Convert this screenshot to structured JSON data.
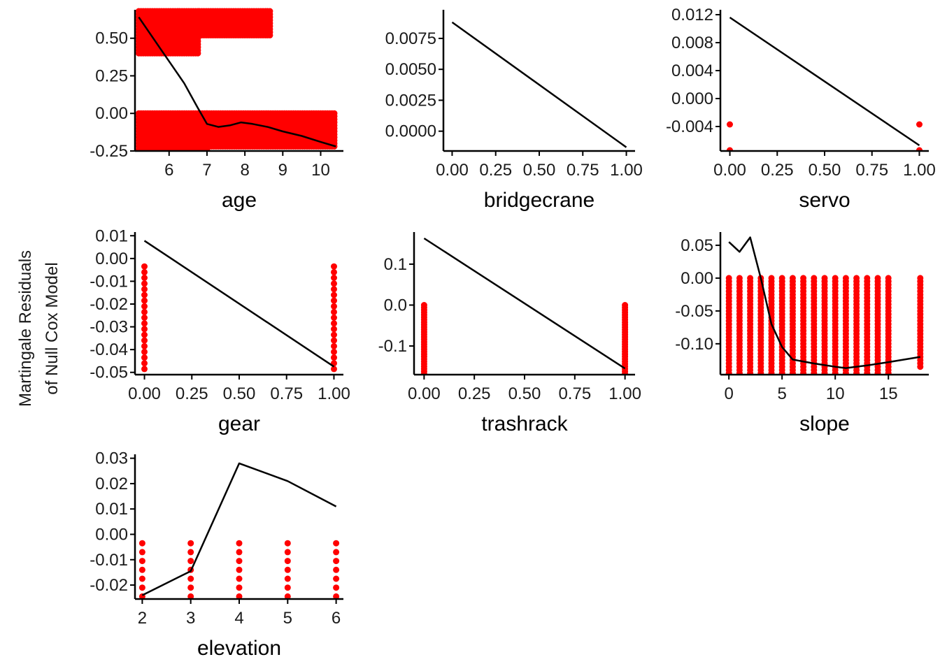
{
  "figure": {
    "ylabel_lines": [
      "Martingale Residuals",
      "of Null Cox Model"
    ]
  },
  "colors": {
    "points": "#ff0000",
    "line": "#000000",
    "axis": "#000000"
  },
  "chart_data": [
    {
      "type": "scatter",
      "xlabel": "age",
      "xlim": [
        5.1,
        10.6
      ],
      "ylim": [
        -0.25,
        0.68
      ],
      "xticks": [
        6,
        7,
        8,
        9,
        10
      ],
      "xtick_labels": [
        "6",
        "7",
        "8",
        "9",
        "10"
      ],
      "yticks": [
        -0.25,
        0.0,
        0.25,
        0.5
      ],
      "ytick_labels": [
        "-0.25",
        "0.00",
        "0.25",
        "0.50"
      ],
      "point_columns": [
        {
          "x_start": 5.2,
          "x_end": 7.0,
          "step": 0.06,
          "y_top": 0.0,
          "y_bottom": -0.25,
          "y_step": 0.02
        },
        {
          "x_start": 7.0,
          "x_end": 10.4,
          "step": 0.06,
          "y_top": 0.0,
          "y_bottom": -0.22,
          "y_step": 0.02
        },
        {
          "x_start": 5.2,
          "x_end": 6.8,
          "step": 0.06,
          "y_top": 0.68,
          "y_bottom": 0.4,
          "y_step": 0.02
        },
        {
          "x_start": 6.8,
          "x_end": 8.7,
          "step": 0.06,
          "y_top": 0.68,
          "y_bottom": 0.52,
          "y_step": 0.02
        }
      ],
      "line": {
        "x": [
          5.2,
          5.8,
          6.4,
          6.75,
          7.0,
          7.3,
          7.6,
          7.9,
          8.2,
          8.6,
          9.0,
          9.5,
          10.0,
          10.4
        ],
        "y": [
          0.64,
          0.42,
          0.2,
          0.04,
          -0.07,
          -0.09,
          -0.08,
          -0.06,
          -0.07,
          -0.09,
          -0.12,
          -0.15,
          -0.19,
          -0.22
        ]
      }
    },
    {
      "type": "scatter",
      "xlabel": "bridgecrane",
      "xlim": [
        -0.05,
        1.05
      ],
      "ylim": [
        -0.0016,
        0.0097
      ],
      "xticks": [
        0.0,
        0.25,
        0.5,
        0.75,
        1.0
      ],
      "xtick_labels": [
        "0.00",
        "0.25",
        "0.50",
        "0.75",
        "1.00"
      ],
      "yticks": [
        0.0,
        0.0025,
        0.005,
        0.0075
      ],
      "ytick_labels": [
        "0.0000",
        "0.0025",
        "0.0050",
        "0.0075"
      ],
      "point_columns": [],
      "line": {
        "x": [
          0,
          1
        ],
        "y": [
          0.0088,
          -0.0013
        ]
      }
    },
    {
      "type": "scatter",
      "xlabel": "servo",
      "xlim": [
        -0.05,
        1.05
      ],
      "ylim": [
        -0.0075,
        0.0125
      ],
      "xticks": [
        0.0,
        0.25,
        0.5,
        0.75,
        1.0
      ],
      "xtick_labels": [
        "0.00",
        "0.25",
        "0.50",
        "0.75",
        "1.00"
      ],
      "yticks": [
        -0.004,
        0.0,
        0.004,
        0.008,
        0.012
      ],
      "ytick_labels": [
        "-0.004",
        "0.000",
        "0.004",
        "0.008",
        "0.012"
      ],
      "points": {
        "x": [
          0,
          0,
          1,
          1
        ],
        "y": [
          -0.0037,
          -0.0074,
          -0.0037,
          -0.0074
        ]
      },
      "line": {
        "x": [
          0,
          1
        ],
        "y": [
          0.0116,
          -0.0067
        ]
      }
    },
    {
      "type": "scatter",
      "xlabel": "gear",
      "xlim": [
        -0.05,
        1.05
      ],
      "ylim": [
        -0.051,
        0.011
      ],
      "xticks": [
        0.0,
        0.25,
        0.5,
        0.75,
        1.0
      ],
      "xtick_labels": [
        "0.00",
        "0.25",
        "0.50",
        "0.75",
        "1.00"
      ],
      "yticks": [
        -0.05,
        -0.04,
        -0.03,
        -0.02,
        -0.01,
        0.0,
        0.01
      ],
      "ytick_labels": [
        "-0.05",
        "-0.04",
        "-0.03",
        "-0.02",
        "-0.01",
        "0.00",
        "0.01"
      ],
      "point_columns": [
        {
          "x_start": 0,
          "x_end": 0,
          "step": 1,
          "y_top": -0.0035,
          "y_bottom": -0.0505,
          "y_step": 0.0025
        },
        {
          "x_start": 1,
          "x_end": 1,
          "step": 1,
          "y_top": -0.0035,
          "y_bottom": -0.0505,
          "y_step": 0.0025
        }
      ],
      "line": {
        "x": [
          0,
          1
        ],
        "y": [
          0.0078,
          -0.0475
        ]
      }
    },
    {
      "type": "scatter",
      "xlabel": "trashrack",
      "xlim": [
        -0.05,
        1.05
      ],
      "ylim": [
        -0.17,
        0.175
      ],
      "xticks": [
        0.0,
        0.25,
        0.5,
        0.75,
        1.0
      ],
      "xtick_labels": [
        "0.00",
        "0.25",
        "0.50",
        "0.75",
        "1.00"
      ],
      "yticks": [
        -0.1,
        0.0,
        0.1
      ],
      "ytick_labels": [
        "-0.1",
        "0.0",
        "0.1"
      ],
      "point_columns": [
        {
          "x_start": 0,
          "x_end": 0,
          "step": 1,
          "y_top": 0.0,
          "y_bottom": -0.17,
          "y_step": 0.006
        },
        {
          "x_start": 1,
          "x_end": 1,
          "step": 1,
          "y_top": 0.0,
          "y_bottom": -0.17,
          "y_step": 0.006
        }
      ],
      "line": {
        "x": [
          0,
          1
        ],
        "y": [
          0.163,
          -0.155
        ]
      }
    },
    {
      "type": "scatter",
      "xlabel": "slope",
      "xlim": [
        -0.8,
        18.8
      ],
      "ylim": [
        -0.147,
        0.068
      ],
      "xticks": [
        0,
        5,
        10,
        15
      ],
      "xtick_labels": [
        "0",
        "5",
        "10",
        "15"
      ],
      "yticks": [
        -0.1,
        -0.05,
        0.0,
        0.05
      ],
      "ytick_labels": [
        "-0.10",
        "-0.05",
        "0.00",
        "0.05"
      ],
      "point_columns": [
        {
          "x_start": 0,
          "x_end": 15,
          "step": 1,
          "y_top": 0.0,
          "y_bottom": -0.145,
          "y_step": 0.005
        },
        {
          "x_start": 18,
          "x_end": 18,
          "step": 1,
          "y_top": 0.0,
          "y_bottom": -0.135,
          "y_step": 0.005
        }
      ],
      "line": {
        "x": [
          0,
          1,
          2,
          3,
          4,
          5,
          6,
          8,
          10,
          11,
          13,
          15,
          18
        ],
        "y": [
          0.055,
          0.04,
          0.062,
          0.0,
          -0.07,
          -0.105,
          -0.124,
          -0.13,
          -0.135,
          -0.137,
          -0.133,
          -0.128,
          -0.12
        ]
      }
    },
    {
      "type": "scatter",
      "xlabel": "elevation",
      "xlim": [
        1.85,
        6.15
      ],
      "ylim": [
        -0.0255,
        0.031
      ],
      "xticks": [
        2,
        3,
        4,
        5,
        6
      ],
      "xtick_labels": [
        "2",
        "3",
        "4",
        "5",
        "6"
      ],
      "yticks": [
        -0.02,
        -0.01,
        0.0,
        0.01,
        0.02,
        0.03
      ],
      "ytick_labels": [
        "-0.02",
        "-0.01",
        "0.00",
        "0.01",
        "0.02",
        "0.03"
      ],
      "point_columns": [
        {
          "x_start": 2,
          "x_end": 6,
          "step": 1,
          "y_top": -0.0035,
          "y_bottom": -0.0245,
          "y_step": 0.0035
        }
      ],
      "line": {
        "x": [
          2,
          3,
          4,
          5,
          6
        ],
        "y": [
          -0.024,
          -0.0145,
          0.028,
          0.021,
          0.011
        ]
      }
    }
  ]
}
